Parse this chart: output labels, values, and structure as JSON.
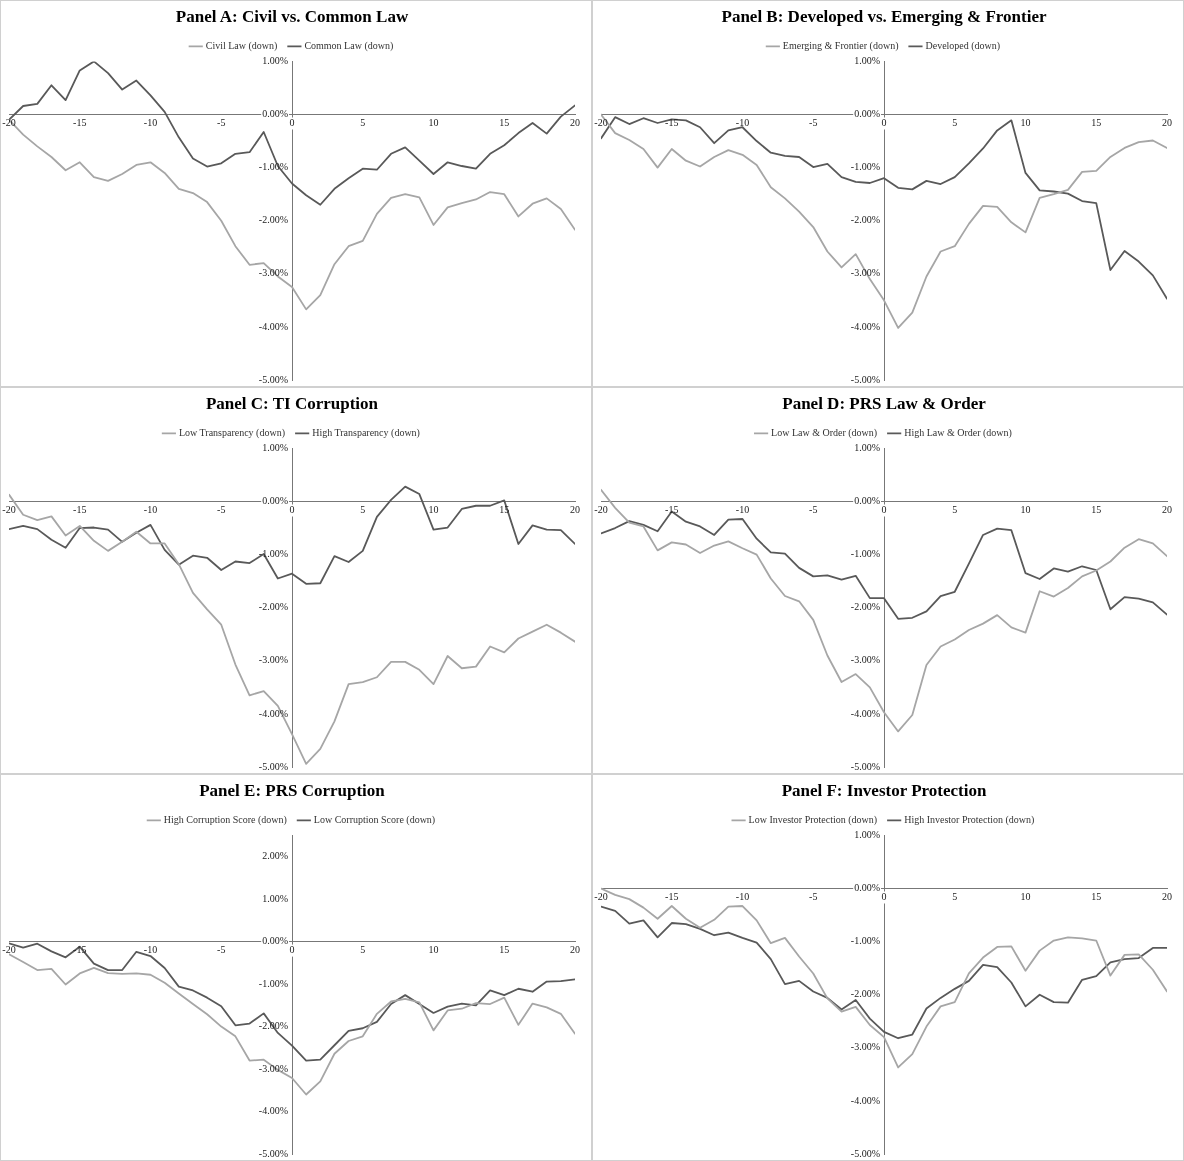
{
  "chart_data": [
    {
      "type": "line",
      "title": "Panel A: Civil vs. Common Law",
      "x": [
        -20,
        -19,
        -18,
        -17,
        -16,
        -15,
        -14,
        -13,
        -12,
        -11,
        -10,
        -9,
        -8,
        -7,
        -6,
        -5,
        -4,
        -3,
        -2,
        -1,
        0,
        1,
        2,
        3,
        4,
        5,
        6,
        7,
        8,
        9,
        10,
        11,
        12,
        13,
        14,
        15,
        16,
        17,
        18,
        19,
        20
      ],
      "xlim": [
        -20,
        20
      ],
      "xticks": [
        -20,
        -15,
        -10,
        -5,
        0,
        5,
        10,
        15,
        20
      ],
      "ylim": [
        -5,
        1
      ],
      "yticks": [
        {
          "value": -5,
          "label": "-5.00%"
        },
        {
          "value": -4,
          "label": "-4.00%"
        },
        {
          "value": -3,
          "label": "-3.00%"
        },
        {
          "value": -2,
          "label": "-2.00%"
        },
        {
          "value": -1,
          "label": "-1.00%"
        },
        {
          "value": 0,
          "label": "0.00%"
        },
        {
          "value": 1,
          "label": "1.00%"
        }
      ],
      "grid": false,
      "legend": "top",
      "marker": "none",
      "line_style": "solid",
      "series": [
        {
          "name": "Civil Law (down)",
          "color": "#a6a6a6",
          "values": [
            -0.1,
            -0.38,
            -0.6,
            -0.8,
            -1.05,
            -0.9,
            -1.18,
            -1.25,
            -1.12,
            -0.95,
            -0.9,
            -1.1,
            -1.4,
            -1.48,
            -1.65,
            -2.0,
            -2.48,
            -2.83,
            -2.8,
            -3.05,
            -3.25,
            -3.67,
            -3.4,
            -2.82,
            -2.48,
            -2.38,
            -1.87,
            -1.57,
            -1.5,
            -1.56,
            -2.08,
            -1.75,
            -1.67,
            -1.6,
            -1.46,
            -1.5,
            -1.92,
            -1.68,
            -1.58,
            -1.78,
            -2.17
          ]
        },
        {
          "name": "Common Law (down)",
          "color": "#595959",
          "values": [
            -0.1,
            0.16,
            0.2,
            0.55,
            0.27,
            0.83,
            1.0,
            0.78,
            0.47,
            0.64,
            0.36,
            0.05,
            -0.43,
            -0.83,
            -0.98,
            -0.92,
            -0.74,
            -0.71,
            -0.33,
            -0.97,
            -1.3,
            -1.52,
            -1.7,
            -1.4,
            -1.2,
            -1.02,
            -1.04,
            -0.74,
            -0.62,
            -0.87,
            -1.12,
            -0.9,
            -0.97,
            -1.02,
            -0.74,
            -0.58,
            -0.35,
            -0.16,
            -0.36,
            -0.04,
            0.17
          ]
        }
      ]
    },
    {
      "type": "line",
      "title": "Panel B: Developed vs. Emerging & Frontier",
      "x": [
        -20,
        -19,
        -18,
        -17,
        -16,
        -15,
        -14,
        -13,
        -12,
        -11,
        -10,
        -9,
        -8,
        -7,
        -6,
        -5,
        -4,
        -3,
        -2,
        -1,
        0,
        1,
        2,
        3,
        4,
        5,
        6,
        7,
        8,
        9,
        10,
        11,
        12,
        13,
        14,
        15,
        16,
        17,
        18,
        19,
        20
      ],
      "xlim": [
        -20,
        20
      ],
      "xticks": [
        -20,
        -15,
        -10,
        -5,
        0,
        5,
        10,
        15,
        20
      ],
      "ylim": [
        -5,
        1
      ],
      "yticks": [
        {
          "value": -5,
          "label": "-5.00%"
        },
        {
          "value": -4,
          "label": "-4.00%"
        },
        {
          "value": -3,
          "label": "-3.00%"
        },
        {
          "value": -2,
          "label": "-2.00%"
        },
        {
          "value": -1,
          "label": "-1.00%"
        },
        {
          "value": 0,
          "label": "0.00%"
        },
        {
          "value": 1,
          "label": "1.00%"
        }
      ],
      "grid": false,
      "legend": "top",
      "marker": "none",
      "line_style": "solid",
      "series": [
        {
          "name": "Emerging & Frontier (down)",
          "color": "#a6a6a6",
          "values": [
            0.0,
            -0.35,
            -0.48,
            -0.65,
            -1.0,
            -0.65,
            -0.87,
            -0.98,
            -0.8,
            -0.67,
            -0.76,
            -0.95,
            -1.37,
            -1.58,
            -1.83,
            -2.12,
            -2.58,
            -2.88,
            -2.63,
            -3.1,
            -3.5,
            -4.02,
            -3.73,
            -3.05,
            -2.58,
            -2.48,
            -2.06,
            -1.72,
            -1.74,
            -2.03,
            -2.22,
            -1.57,
            -1.5,
            -1.42,
            -1.08,
            -1.06,
            -0.8,
            -0.63,
            -0.52,
            -0.49,
            -0.63
          ]
        },
        {
          "name": "Developed (down)",
          "color": "#595959",
          "values": [
            -0.45,
            -0.05,
            -0.18,
            -0.07,
            -0.16,
            -0.09,
            -0.11,
            -0.24,
            -0.54,
            -0.3,
            -0.24,
            -0.5,
            -0.72,
            -0.78,
            -0.8,
            -0.99,
            -0.93,
            -1.18,
            -1.27,
            -1.29,
            -1.2,
            -1.38,
            -1.41,
            -1.25,
            -1.31,
            -1.18,
            -0.92,
            -0.64,
            -0.3,
            -0.11,
            -1.1,
            -1.43,
            -1.45,
            -1.49,
            -1.63,
            -1.67,
            -2.93,
            -2.57,
            -2.77,
            -3.03,
            -3.47
          ]
        }
      ]
    },
    {
      "type": "line",
      "title": "Panel C: TI Corruption",
      "x": [
        -20,
        -19,
        -18,
        -17,
        -16,
        -15,
        -14,
        -13,
        -12,
        -11,
        -10,
        -9,
        -8,
        -7,
        -6,
        -5,
        -4,
        -3,
        -2,
        -1,
        0,
        1,
        2,
        3,
        4,
        5,
        6,
        7,
        8,
        9,
        10,
        11,
        12,
        13,
        14,
        15,
        16,
        17,
        18,
        19,
        20
      ],
      "xlim": [
        -20,
        20
      ],
      "xticks": [
        -20,
        -15,
        -10,
        -5,
        0,
        5,
        10,
        15,
        20
      ],
      "ylim": [
        -5,
        1
      ],
      "yticks": [
        {
          "value": -5,
          "label": "-5.00%"
        },
        {
          "value": -4,
          "label": "-4.00%"
        },
        {
          "value": -3,
          "label": "-3.00%"
        },
        {
          "value": -2,
          "label": "-2.00%"
        },
        {
          "value": -1,
          "label": "-1.00%"
        },
        {
          "value": 0,
          "label": "0.00%"
        },
        {
          "value": 1,
          "label": "1.00%"
        }
      ],
      "grid": false,
      "legend": "top",
      "marker": "none",
      "line_style": "solid",
      "series": [
        {
          "name": "Low Transparency (down)",
          "color": "#a6a6a6",
          "values": [
            0.13,
            -0.25,
            -0.35,
            -0.28,
            -0.64,
            -0.46,
            -0.74,
            -0.93,
            -0.76,
            -0.57,
            -0.79,
            -0.79,
            -1.18,
            -1.72,
            -2.03,
            -2.32,
            -3.07,
            -3.65,
            -3.57,
            -3.85,
            -4.38,
            -4.94,
            -4.66,
            -4.14,
            -3.44,
            -3.4,
            -3.31,
            -3.02,
            -3.02,
            -3.17,
            -3.44,
            -2.91,
            -3.14,
            -3.11,
            -2.73,
            -2.84,
            -2.58,
            -2.45,
            -2.32,
            -2.47,
            -2.64
          ]
        },
        {
          "name": "High Transparency (down)",
          "color": "#595959",
          "values": [
            -0.52,
            -0.46,
            -0.52,
            -0.72,
            -0.87,
            -0.5,
            -0.49,
            -0.53,
            -0.76,
            -0.59,
            -0.44,
            -0.91,
            -1.19,
            -1.02,
            -1.06,
            -1.29,
            -1.13,
            -1.16,
            -0.99,
            -1.45,
            -1.36,
            -1.55,
            -1.54,
            -1.03,
            -1.14,
            -0.93,
            -0.29,
            0.03,
            0.28,
            0.14,
            -0.53,
            -0.49,
            -0.14,
            -0.08,
            -0.08,
            0.02,
            -0.8,
            -0.45,
            -0.53,
            -0.54,
            -0.8
          ]
        }
      ]
    },
    {
      "type": "line",
      "title": "Panel D: PRS Law & Order",
      "x": [
        -20,
        -19,
        -18,
        -17,
        -16,
        -15,
        -14,
        -13,
        -12,
        -11,
        -10,
        -9,
        -8,
        -7,
        -6,
        -5,
        -4,
        -3,
        -2,
        -1,
        0,
        1,
        2,
        3,
        4,
        5,
        6,
        7,
        8,
        9,
        10,
        11,
        12,
        13,
        14,
        15,
        16,
        17,
        18,
        19,
        20
      ],
      "xlim": [
        -20,
        20
      ],
      "xticks": [
        -20,
        -15,
        -10,
        -5,
        0,
        5,
        10,
        15,
        20
      ],
      "ylim": [
        -5,
        1
      ],
      "yticks": [
        {
          "value": -5,
          "label": "-5.00%"
        },
        {
          "value": -4,
          "label": "-4.00%"
        },
        {
          "value": -3,
          "label": "-3.00%"
        },
        {
          "value": -2,
          "label": "-2.00%"
        },
        {
          "value": -1,
          "label": "-1.00%"
        },
        {
          "value": 0,
          "label": "0.00%"
        },
        {
          "value": 1,
          "label": "1.00%"
        }
      ],
      "grid": false,
      "legend": "top",
      "marker": "none",
      "line_style": "solid",
      "series": [
        {
          "name": "Low Law & Order (down)",
          "color": "#a6a6a6",
          "values": [
            0.22,
            -0.12,
            -0.4,
            -0.47,
            -0.92,
            -0.77,
            -0.81,
            -0.97,
            -0.83,
            -0.75,
            -0.88,
            -1.0,
            -1.45,
            -1.78,
            -1.88,
            -2.23,
            -2.9,
            -3.4,
            -3.25,
            -3.5,
            -3.97,
            -4.33,
            -4.02,
            -3.08,
            -2.73,
            -2.6,
            -2.42,
            -2.3,
            -2.14,
            -2.37,
            -2.47,
            -1.69,
            -1.79,
            -1.63,
            -1.41,
            -1.3,
            -1.13,
            -0.87,
            -0.71,
            -0.79,
            -1.03
          ]
        },
        {
          "name": "High Law & Order (down)",
          "color": "#595959",
          "values": [
            -0.6,
            -0.5,
            -0.37,
            -0.44,
            -0.56,
            -0.19,
            -0.38,
            -0.47,
            -0.63,
            -0.34,
            -0.33,
            -0.7,
            -0.96,
            -0.98,
            -1.25,
            -1.41,
            -1.39,
            -1.47,
            -1.4,
            -1.82,
            -1.82,
            -2.21,
            -2.19,
            -2.07,
            -1.78,
            -1.7,
            -1.17,
            -0.63,
            -0.51,
            -0.54,
            -1.35,
            -1.46,
            -1.26,
            -1.32,
            -1.22,
            -1.29,
            -2.03,
            -1.8,
            -1.83,
            -1.9,
            -2.13
          ]
        }
      ]
    },
    {
      "type": "line",
      "title": "Panel E: PRS Corruption",
      "x": [
        -20,
        -19,
        -18,
        -17,
        -16,
        -15,
        -14,
        -13,
        -12,
        -11,
        -10,
        -9,
        -8,
        -7,
        -6,
        -5,
        -4,
        -3,
        -2,
        -1,
        0,
        1,
        2,
        3,
        4,
        5,
        6,
        7,
        8,
        9,
        10,
        11,
        12,
        13,
        14,
        15,
        16,
        17,
        18,
        19,
        20
      ],
      "xlim": [
        -20,
        20
      ],
      "xticks": [
        -20,
        -15,
        -10,
        -5,
        0,
        5,
        10,
        15,
        20
      ],
      "ylim": [
        -5,
        2.5
      ],
      "yticks": [
        {
          "value": -5,
          "label": "-5.00%"
        },
        {
          "value": -4,
          "label": "-4.00%"
        },
        {
          "value": -3,
          "label": "-3.00%"
        },
        {
          "value": -2,
          "label": "-2.00%"
        },
        {
          "value": -1,
          "label": "-1.00%"
        },
        {
          "value": 0,
          "label": "0.00%"
        },
        {
          "value": 1,
          "label": "1.00%"
        },
        {
          "value": 2,
          "label": "2.00%"
        }
      ],
      "grid": false,
      "legend": "top",
      "marker": "none",
      "line_style": "solid",
      "series": [
        {
          "name": "High Corruption Score (down)",
          "color": "#a6a6a6",
          "values": [
            -0.3,
            -0.48,
            -0.67,
            -0.64,
            -1.01,
            -0.75,
            -0.62,
            -0.74,
            -0.76,
            -0.75,
            -0.78,
            -0.97,
            -1.22,
            -1.47,
            -1.71,
            -2.0,
            -2.23,
            -2.8,
            -2.78,
            -3.02,
            -3.21,
            -3.6,
            -3.29,
            -2.64,
            -2.34,
            -2.23,
            -1.7,
            -1.41,
            -1.35,
            -1.43,
            -2.09,
            -1.62,
            -1.58,
            -1.45,
            -1.47,
            -1.32,
            -1.96,
            -1.46,
            -1.55,
            -1.7,
            -2.17
          ]
        },
        {
          "name": "Low Corruption Score (down)",
          "color": "#595959",
          "values": [
            -0.04,
            -0.14,
            -0.05,
            -0.23,
            -0.37,
            -0.12,
            -0.52,
            -0.67,
            -0.67,
            -0.24,
            -0.34,
            -0.62,
            -1.06,
            -1.15,
            -1.32,
            -1.52,
            -1.97,
            -1.93,
            -1.69,
            -2.15,
            -2.45,
            -2.8,
            -2.78,
            -2.44,
            -2.1,
            -2.04,
            -1.89,
            -1.47,
            -1.26,
            -1.47,
            -1.68,
            -1.53,
            -1.46,
            -1.5,
            -1.15,
            -1.26,
            -1.11,
            -1.18,
            -0.94,
            -0.93,
            -0.89
          ]
        }
      ]
    },
    {
      "type": "line",
      "title": "Panel F: Investor Protection",
      "x": [
        -20,
        -19,
        -18,
        -17,
        -16,
        -15,
        -14,
        -13,
        -12,
        -11,
        -10,
        -9,
        -8,
        -7,
        -6,
        -5,
        -4,
        -3,
        -2,
        -1,
        0,
        1,
        2,
        3,
        4,
        5,
        6,
        7,
        8,
        9,
        10,
        11,
        12,
        13,
        14,
        15,
        16,
        17,
        18,
        19,
        20
      ],
      "xlim": [
        -20,
        20
      ],
      "xticks": [
        -20,
        -15,
        -10,
        -5,
        0,
        5,
        10,
        15,
        20
      ],
      "ylim": [
        -5,
        1
      ],
      "yticks": [
        {
          "value": -5,
          "label": "-5.00%"
        },
        {
          "value": -4,
          "label": "-4.00%"
        },
        {
          "value": -3,
          "label": "-3.00%"
        },
        {
          "value": -2,
          "label": "-2.00%"
        },
        {
          "value": -1,
          "label": "-1.00%"
        },
        {
          "value": 0,
          "label": "0.00%"
        },
        {
          "value": 1,
          "label": "1.00%"
        }
      ],
      "grid": false,
      "legend": "top",
      "marker": "none",
      "line_style": "solid",
      "series": [
        {
          "name": "Low Investor Protection (down)",
          "color": "#a6a6a6",
          "values": [
            0.0,
            -0.12,
            -0.2,
            -0.36,
            -0.57,
            -0.33,
            -0.57,
            -0.74,
            -0.59,
            -0.34,
            -0.33,
            -0.6,
            -1.03,
            -0.93,
            -1.28,
            -1.6,
            -2.07,
            -2.32,
            -2.23,
            -2.57,
            -2.8,
            -3.37,
            -3.12,
            -2.6,
            -2.22,
            -2.14,
            -1.6,
            -1.3,
            -1.1,
            -1.09,
            -1.55,
            -1.17,
            -0.98,
            -0.92,
            -0.94,
            -0.98,
            -1.64,
            -1.25,
            -1.24,
            -1.53,
            -1.94
          ]
        },
        {
          "name": "High Investor Protection (down)",
          "color": "#595959",
          "values": [
            -0.34,
            -0.42,
            -0.66,
            -0.6,
            -0.92,
            -0.65,
            -0.67,
            -0.76,
            -0.88,
            -0.83,
            -0.93,
            -1.02,
            -1.33,
            -1.8,
            -1.74,
            -1.94,
            -2.06,
            -2.28,
            -2.1,
            -2.45,
            -2.7,
            -2.82,
            -2.75,
            -2.26,
            -2.06,
            -1.89,
            -1.74,
            -1.44,
            -1.48,
            -1.77,
            -2.22,
            -2.0,
            -2.14,
            -2.15,
            -1.72,
            -1.65,
            -1.39,
            -1.33,
            -1.31,
            -1.12,
            -1.12
          ]
        }
      ]
    }
  ]
}
